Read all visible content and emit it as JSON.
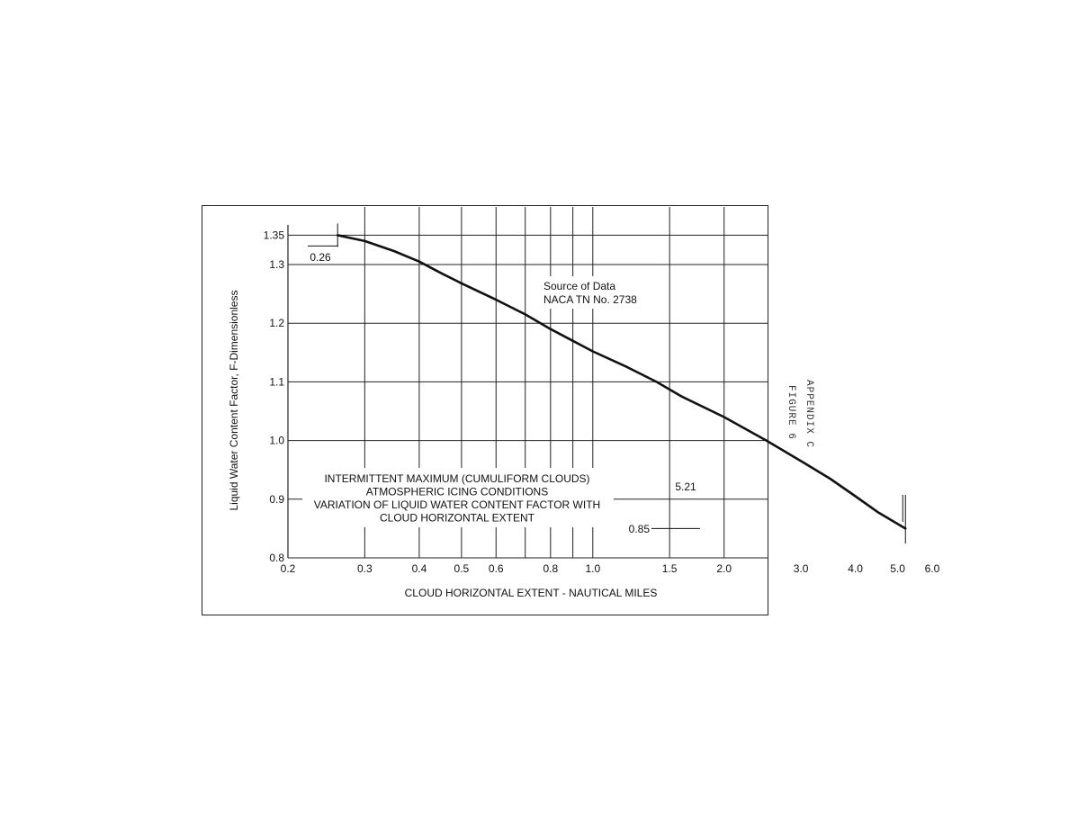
{
  "chart_data": {
    "type": "line",
    "title_lines": [
      "INTERMITTENT MAXIMUM (CUMULIFORM CLOUDS)",
      "ATMOSPHERIC ICING CONDITIONS",
      "VARIATION OF LIQUID WATER CONTENT FACTOR WITH",
      "CLOUD HORIZONTAL EXTENT"
    ],
    "source_lines": [
      "Source of Data",
      "NACA TN No. 2738"
    ],
    "xlabel": "CLOUD HORIZONTAL EXTENT - NAUTICAL MILES",
    "ylabel": "Liquid Water Content Factor, F-Dimensionless",
    "x_scale": "log",
    "xlim": [
      0.2,
      10
    ],
    "ylim": [
      0.8,
      1.35
    ],
    "x_ticks": [
      {
        "value": 0.2,
        "label": "0.2"
      },
      {
        "value": 0.3,
        "label": "0.3"
      },
      {
        "value": 0.4,
        "label": "0.4"
      },
      {
        "value": 0.5,
        "label": "0.5"
      },
      {
        "value": 0.6,
        "label": "0.6"
      },
      {
        "value": 0.8,
        "label": "0.8"
      },
      {
        "value": 1.0,
        "label": "1.0"
      },
      {
        "value": 1.5,
        "label": "1.5"
      },
      {
        "value": 2.0,
        "label": "2.0"
      },
      {
        "value": 3.0,
        "label": "3.0"
      },
      {
        "value": 4.0,
        "label": "4.0"
      },
      {
        "value": 5.0,
        "label": "5.0"
      },
      {
        "value": 6.0,
        "label": "6.0"
      }
    ],
    "x_grid": [
      0.3,
      0.4,
      0.5,
      0.6,
      0.7,
      0.8,
      0.9,
      1.0,
      1.5,
      2.0,
      3.0,
      4.0,
      5.0,
      6.0,
      7.0
    ],
    "y_ticks": [
      {
        "value": 1.35,
        "label": "1.35"
      },
      {
        "value": 1.3,
        "label": "1.3"
      },
      {
        "value": 1.2,
        "label": "1.2"
      },
      {
        "value": 1.1,
        "label": "1.1"
      },
      {
        "value": 1.0,
        "label": "1.0"
      },
      {
        "value": 0.9,
        "label": "0.9"
      },
      {
        "value": 0.8,
        "label": "0.8"
      }
    ],
    "grid": true,
    "series": [
      {
        "points": [
          [
            0.26,
            1.35
          ],
          [
            0.3,
            1.34
          ],
          [
            0.35,
            1.323
          ],
          [
            0.4,
            1.305
          ],
          [
            0.45,
            1.285
          ],
          [
            0.5,
            1.268
          ],
          [
            0.6,
            1.24
          ],
          [
            0.7,
            1.215
          ],
          [
            0.8,
            1.19
          ],
          [
            0.9,
            1.17
          ],
          [
            1.0,
            1.152
          ],
          [
            1.2,
            1.125
          ],
          [
            1.4,
            1.1
          ],
          [
            1.6,
            1.075
          ],
          [
            2.0,
            1.04
          ],
          [
            2.5,
            1.0
          ],
          [
            3.0,
            0.965
          ],
          [
            3.5,
            0.935
          ],
          [
            4.0,
            0.905
          ],
          [
            4.5,
            0.878
          ],
          [
            5.21,
            0.85
          ]
        ]
      }
    ],
    "annotations": [
      {
        "text": "0.26",
        "x": 0.26,
        "y": 1.35
      },
      {
        "text": "5.21",
        "x": 5.21,
        "y": 0.85
      },
      {
        "text": "0.85",
        "x": 5.21,
        "y": 0.85
      }
    ]
  },
  "side_text": {
    "line1": "APPENDIX C",
    "line2": "FIGURE 6"
  }
}
